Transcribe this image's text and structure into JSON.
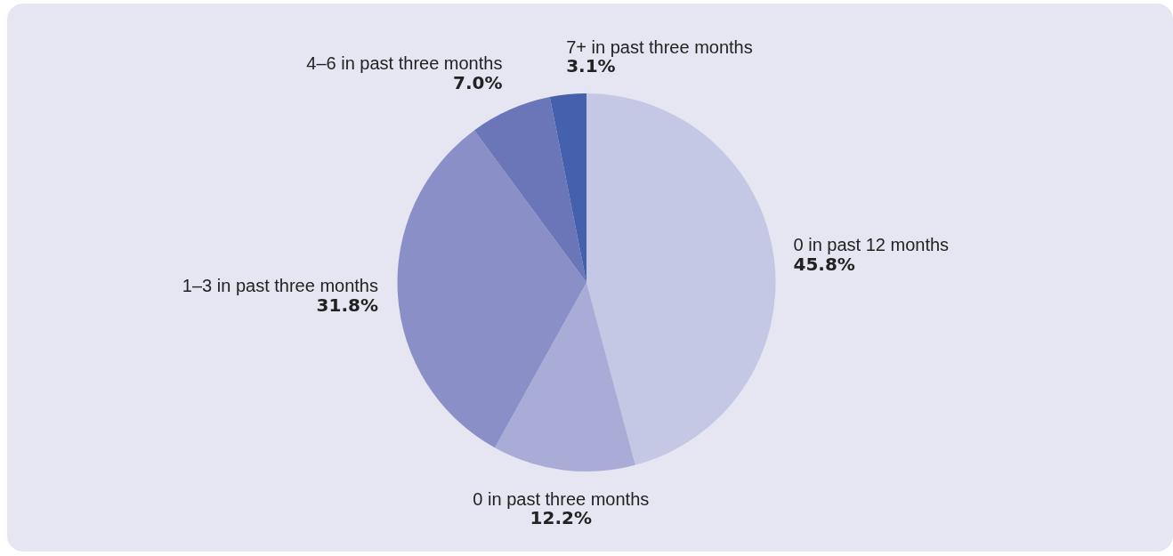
{
  "chart_data": {
    "type": "pie",
    "categories": [
      "0 in past 12 months",
      "0 in past three months",
      "1–3 in past three months",
      "4–6 in past three months",
      "7+ in past three months"
    ],
    "values": [
      45.8,
      12.2,
      31.8,
      7.0,
      3.1
    ],
    "value_labels": [
      "45.8%",
      "12.2%",
      "31.8%",
      "7.0%",
      "3.1%"
    ],
    "colors": [
      "#c5c8e4",
      "#a8acd6",
      "#8a8fc7",
      "#6b76b9",
      "#4560ac"
    ]
  }
}
